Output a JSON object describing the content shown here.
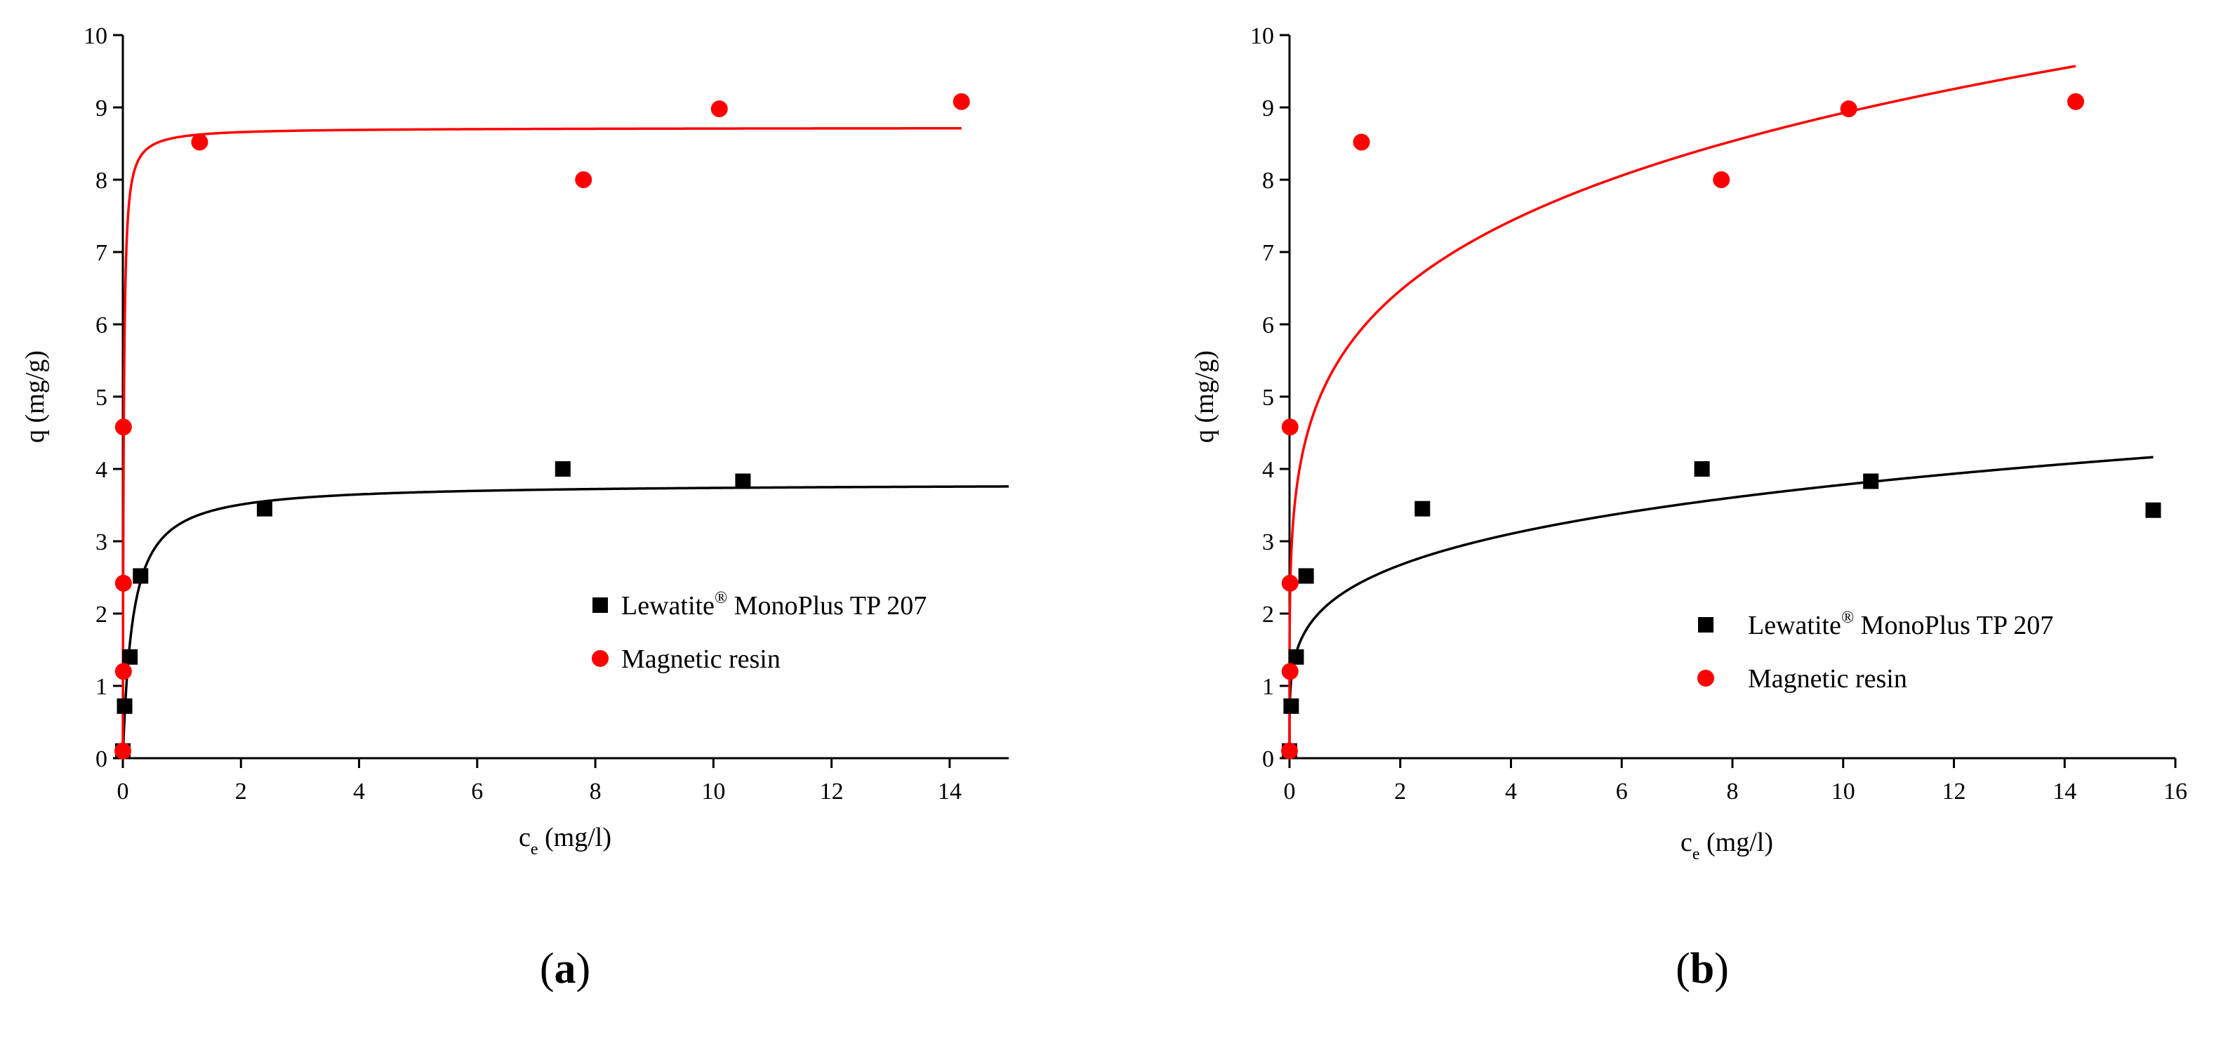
{
  "chart_data": [
    {
      "panel": "a",
      "panel_label": {
        "open": "(",
        "letter": "a",
        "close": ")"
      },
      "type": "scatter",
      "xlabel": {
        "main": "c",
        "sub": "e",
        "units": " (mg/l)"
      },
      "ylabel": "q (mg/g)",
      "xlim": [
        0,
        15
      ],
      "ylim": [
        0,
        10
      ],
      "xticks": [
        0,
        2,
        4,
        6,
        8,
        10,
        12,
        14
      ],
      "yticks": [
        0,
        1,
        2,
        3,
        4,
        5,
        6,
        7,
        8,
        9,
        10
      ],
      "legend_position": "center-right",
      "series": [
        {
          "name": "Lewatite® MonoPlus TP 207",
          "name_base": "Lewatite",
          "name_sup": "®",
          "name_rest": " MonoPlus TP 207",
          "marker": "square",
          "color": "#000000",
          "points": [
            [
              0.0,
              0.1
            ],
            [
              0.03,
              0.72
            ],
            [
              0.12,
              1.4
            ],
            [
              0.3,
              2.52
            ],
            [
              2.4,
              3.45
            ],
            [
              7.45,
              4.0
            ],
            [
              10.5,
              3.83
            ]
          ],
          "fit": {
            "model": "langmuir",
            "qmax": 3.8,
            "K": 6.0,
            "x_end": 15
          }
        },
        {
          "name": "Magnetic resin",
          "marker": "circle",
          "color": "#ff0000",
          "points": [
            [
              0.0,
              0.1
            ],
            [
              0.01,
              1.2
            ],
            [
              0.01,
              2.42
            ],
            [
              0.01,
              4.58
            ],
            [
              1.3,
              8.52
            ],
            [
              7.8,
              8.0
            ],
            [
              10.1,
              8.98
            ],
            [
              14.2,
              9.08
            ]
          ],
          "fit": {
            "model": "langmuir",
            "qmax": 8.72,
            "K": 70,
            "x_end": 14.2
          }
        }
      ]
    },
    {
      "panel": "b",
      "panel_label": {
        "open": "(",
        "letter": "b",
        "close": ")"
      },
      "type": "scatter",
      "xlabel": {
        "main": "c",
        "sub": "e",
        "units": " (mg/l)"
      },
      "ylabel": "q (mg/g)",
      "xlim": [
        0,
        16
      ],
      "ylim": [
        0,
        10
      ],
      "xticks": [
        0,
        2,
        4,
        6,
        8,
        10,
        12,
        14,
        16
      ],
      "yticks": [
        0,
        1,
        2,
        3,
        4,
        5,
        6,
        7,
        8,
        9,
        10
      ],
      "legend_position": "center-right",
      "series": [
        {
          "name": "Lewatite® MonoPlus TP 207",
          "name_base": "Lewatite",
          "name_sup": "®",
          "name_rest": " MonoPlus TP 207",
          "marker": "square",
          "color": "#000000",
          "points": [
            [
              0.0,
              0.1
            ],
            [
              0.03,
              0.72
            ],
            [
              0.12,
              1.4
            ],
            [
              0.3,
              2.52
            ],
            [
              2.4,
              3.45
            ],
            [
              7.45,
              4.0
            ],
            [
              10.5,
              3.83
            ],
            [
              15.6,
              3.43
            ]
          ],
          "fit": {
            "model": "freundlich",
            "K": 2.3,
            "n": 0.216,
            "x_end": 15.6
          }
        },
        {
          "name": "Magnetic resin",
          "marker": "circle",
          "color": "#ff0000",
          "points": [
            [
              0.0,
              0.1
            ],
            [
              0.01,
              1.2
            ],
            [
              0.01,
              2.42
            ],
            [
              0.01,
              4.58
            ],
            [
              1.3,
              8.52
            ],
            [
              7.8,
              8.0
            ],
            [
              10.1,
              8.98
            ],
            [
              14.2,
              9.08
            ]
          ],
          "fit": {
            "model": "freundlich",
            "K": 5.63,
            "n": 0.2,
            "x_end": 14.2
          }
        }
      ]
    }
  ]
}
